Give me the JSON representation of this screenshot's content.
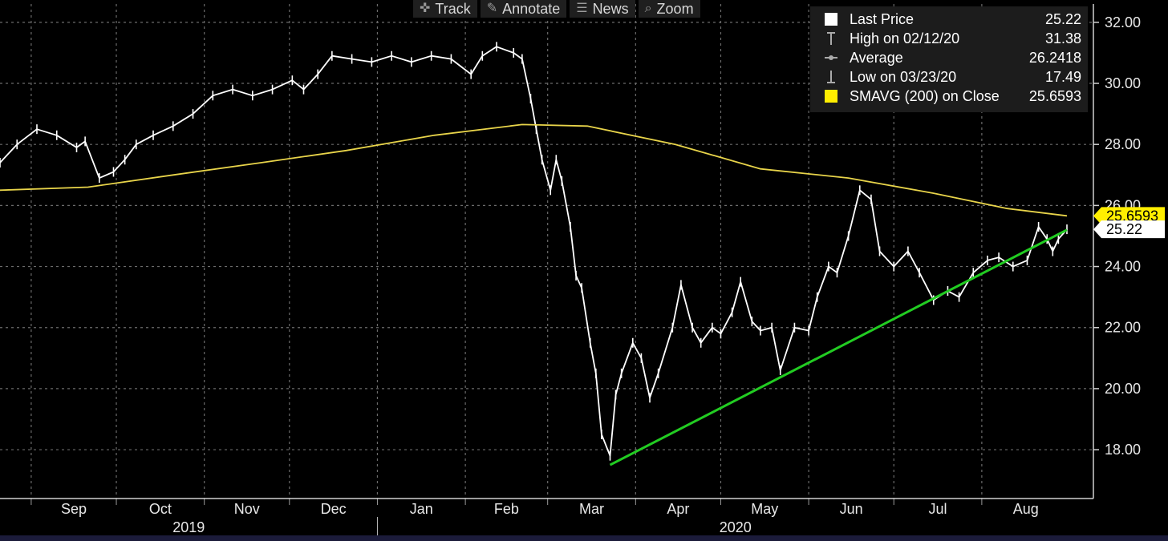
{
  "toolbar": {
    "track": "Track",
    "annotate": "Annotate",
    "news": "News",
    "zoom": "Zoom",
    "track_icon": "crosshair-icon",
    "annotate_icon": "pencil-icon",
    "news_icon": "news-icon",
    "zoom_icon": "magnifier-icon"
  },
  "legend": {
    "last_price_label": "Last Price",
    "last_price_value": "25.22",
    "high_label": "High on 02/12/20",
    "high_value": "31.38",
    "average_label": "Average",
    "average_value": "26.2418",
    "low_label": "Low on 03/23/20",
    "low_value": "17.49",
    "sma_label": "SMAVG (200)  on Close",
    "sma_value": "25.6593"
  },
  "chart_data": {
    "type": "line",
    "subtype": "ohlc-bars",
    "x_axis": {
      "months": [
        "Sep",
        "Oct",
        "Nov",
        "Dec",
        "Jan",
        "Feb",
        "Mar",
        "Apr",
        "May",
        "Jun",
        "Jul",
        "Aug"
      ],
      "years": [
        "2019",
        "2020"
      ],
      "start": "2019-08-21",
      "end": "2020-08-31"
    },
    "y_axis": {
      "ticks": [
        "18.00",
        "20.00",
        "22.00",
        "24.00",
        "26.00",
        "28.00",
        "30.00",
        "32.00"
      ],
      "range": [
        16.4,
        32.6
      ],
      "position": "right"
    },
    "grid": true,
    "legend_placement": "top-right",
    "price_tags": {
      "sma": "25.6593",
      "last": "25.22"
    },
    "series": [
      {
        "kind": "price",
        "color": "#ffffff",
        "points": [
          [
            "2019-08-21",
            27.4
          ],
          [
            "2019-08-27",
            28.0
          ],
          [
            "2019-09-03",
            28.5
          ],
          [
            "2019-09-10",
            28.3
          ],
          [
            "2019-09-17",
            27.9
          ],
          [
            "2019-09-20",
            28.1
          ],
          [
            "2019-09-25",
            26.9
          ],
          [
            "2019-09-30",
            27.1
          ],
          [
            "2019-10-04",
            27.5
          ],
          [
            "2019-10-08",
            28.0
          ],
          [
            "2019-10-14",
            28.3
          ],
          [
            "2019-10-21",
            28.6
          ],
          [
            "2019-10-28",
            29.0
          ],
          [
            "2019-11-04",
            29.6
          ],
          [
            "2019-11-11",
            29.8
          ],
          [
            "2019-11-18",
            29.6
          ],
          [
            "2019-11-25",
            29.8
          ],
          [
            "2019-12-02",
            30.1
          ],
          [
            "2019-12-06",
            29.8
          ],
          [
            "2019-12-11",
            30.3
          ],
          [
            "2019-12-16",
            30.9
          ],
          [
            "2019-12-23",
            30.8
          ],
          [
            "2019-12-30",
            30.7
          ],
          [
            "2020-01-06",
            30.9
          ],
          [
            "2020-01-13",
            30.7
          ],
          [
            "2020-01-20",
            30.9
          ],
          [
            "2020-01-27",
            30.8
          ],
          [
            "2020-02-03",
            30.3
          ],
          [
            "2020-02-07",
            30.9
          ],
          [
            "2020-02-12",
            31.2
          ],
          [
            "2020-02-18",
            31.0
          ],
          [
            "2020-02-21",
            30.8
          ],
          [
            "2020-02-24",
            29.5
          ],
          [
            "2020-02-26",
            28.5
          ],
          [
            "2020-02-28",
            27.5
          ],
          [
            "2020-03-02",
            26.5
          ],
          [
            "2020-03-04",
            27.5
          ],
          [
            "2020-03-06",
            26.8
          ],
          [
            "2020-03-09",
            25.3
          ],
          [
            "2020-03-11",
            23.7
          ],
          [
            "2020-03-13",
            23.3
          ],
          [
            "2020-03-16",
            21.5
          ],
          [
            "2020-03-18",
            20.5
          ],
          [
            "2020-03-20",
            18.5
          ],
          [
            "2020-03-23",
            17.8
          ],
          [
            "2020-03-25",
            19.8
          ],
          [
            "2020-03-27",
            20.5
          ],
          [
            "2020-03-31",
            21.5
          ],
          [
            "2020-04-03",
            21.0
          ],
          [
            "2020-04-06",
            19.7
          ],
          [
            "2020-04-09",
            20.5
          ],
          [
            "2020-04-14",
            22.0
          ],
          [
            "2020-04-17",
            23.4
          ],
          [
            "2020-04-21",
            22.0
          ],
          [
            "2020-04-24",
            21.5
          ],
          [
            "2020-04-28",
            22.0
          ],
          [
            "2020-05-01",
            21.8
          ],
          [
            "2020-05-05",
            22.5
          ],
          [
            "2020-05-08",
            23.5
          ],
          [
            "2020-05-12",
            22.2
          ],
          [
            "2020-05-15",
            21.9
          ],
          [
            "2020-05-19",
            22.0
          ],
          [
            "2020-05-22",
            20.6
          ],
          [
            "2020-05-27",
            22.0
          ],
          [
            "2020-06-01",
            21.9
          ],
          [
            "2020-06-04",
            23.0
          ],
          [
            "2020-06-08",
            24.0
          ],
          [
            "2020-06-11",
            23.8
          ],
          [
            "2020-06-15",
            25.0
          ],
          [
            "2020-06-19",
            26.5
          ],
          [
            "2020-06-23",
            26.2
          ],
          [
            "2020-06-26",
            24.5
          ],
          [
            "2020-07-01",
            24.0
          ],
          [
            "2020-07-06",
            24.5
          ],
          [
            "2020-07-10",
            23.8
          ],
          [
            "2020-07-15",
            22.9
          ],
          [
            "2020-07-20",
            23.2
          ],
          [
            "2020-07-24",
            23.0
          ],
          [
            "2020-07-29",
            23.8
          ],
          [
            "2020-08-03",
            24.2
          ],
          [
            "2020-08-07",
            24.3
          ],
          [
            "2020-08-12",
            24.0
          ],
          [
            "2020-08-17",
            24.2
          ],
          [
            "2020-08-21",
            25.3
          ],
          [
            "2020-08-24",
            24.9
          ],
          [
            "2020-08-26",
            24.5
          ],
          [
            "2020-08-28",
            24.9
          ],
          [
            "2020-08-31",
            25.22
          ]
        ]
      },
      {
        "kind": "moving-average",
        "color": "#e8d44a",
        "points": [
          [
            "2019-08-21",
            26.5
          ],
          [
            "2019-09-21",
            26.6
          ],
          [
            "2019-10-21",
            27.0
          ],
          [
            "2019-11-21",
            27.4
          ],
          [
            "2019-12-21",
            27.8
          ],
          [
            "2020-01-21",
            28.3
          ],
          [
            "2020-02-21",
            28.65
          ],
          [
            "2020-03-15",
            28.6
          ],
          [
            "2020-04-15",
            28.0
          ],
          [
            "2020-05-15",
            27.2
          ],
          [
            "2020-06-15",
            26.9
          ],
          [
            "2020-07-15",
            26.4
          ],
          [
            "2020-08-10",
            25.9
          ],
          [
            "2020-08-31",
            25.66
          ]
        ]
      },
      {
        "kind": "trendline",
        "color": "#22cc22",
        "points": [
          [
            "2020-03-23",
            17.5
          ],
          [
            "2020-08-31",
            25.2
          ]
        ]
      }
    ]
  }
}
